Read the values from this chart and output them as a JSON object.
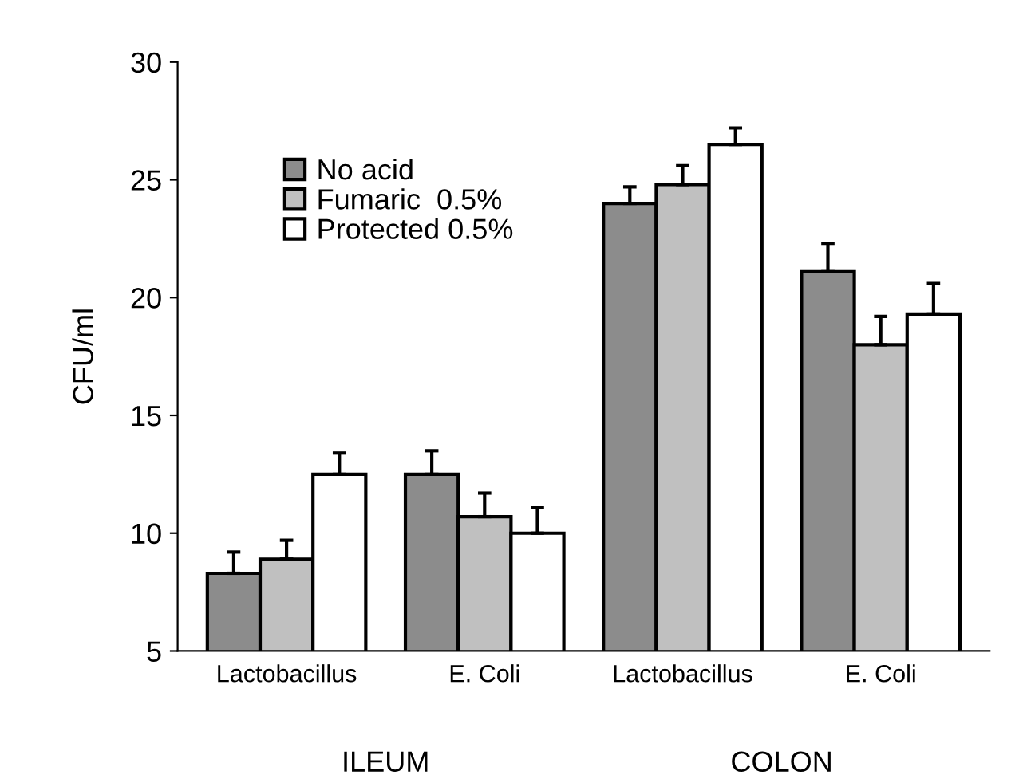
{
  "chart_data": {
    "type": "bar",
    "ylabel": "CFU/ml",
    "categories": [
      "Lactobacillus",
      "E. Coli",
      "Lactobacillus",
      "E. Coli"
    ],
    "series": [
      {
        "name": "No acid",
        "color": "#8c8c8c",
        "values": [
          8.3,
          12.5,
          24.0,
          21.1
        ],
        "errors": [
          0.9,
          1.0,
          0.7,
          1.2
        ]
      },
      {
        "name": "Fumaric  0.5%",
        "color": "#c0c0c0",
        "values": [
          8.9,
          10.7,
          24.8,
          18.0
        ],
        "errors": [
          0.8,
          1.0,
          0.8,
          1.2
        ]
      },
      {
        "name": "Protected 0.5%",
        "color": "#ffffff",
        "values": [
          12.5,
          10.0,
          26.5,
          19.3
        ],
        "errors": [
          0.9,
          1.1,
          0.7,
          1.3
        ]
      }
    ],
    "annotations": [
      "ILEUM",
      "COLON"
    ],
    "ylim": [
      5,
      30
    ],
    "yticks": [
      5,
      10,
      15,
      20,
      25,
      30
    ],
    "grid": false,
    "legend": "top left"
  }
}
